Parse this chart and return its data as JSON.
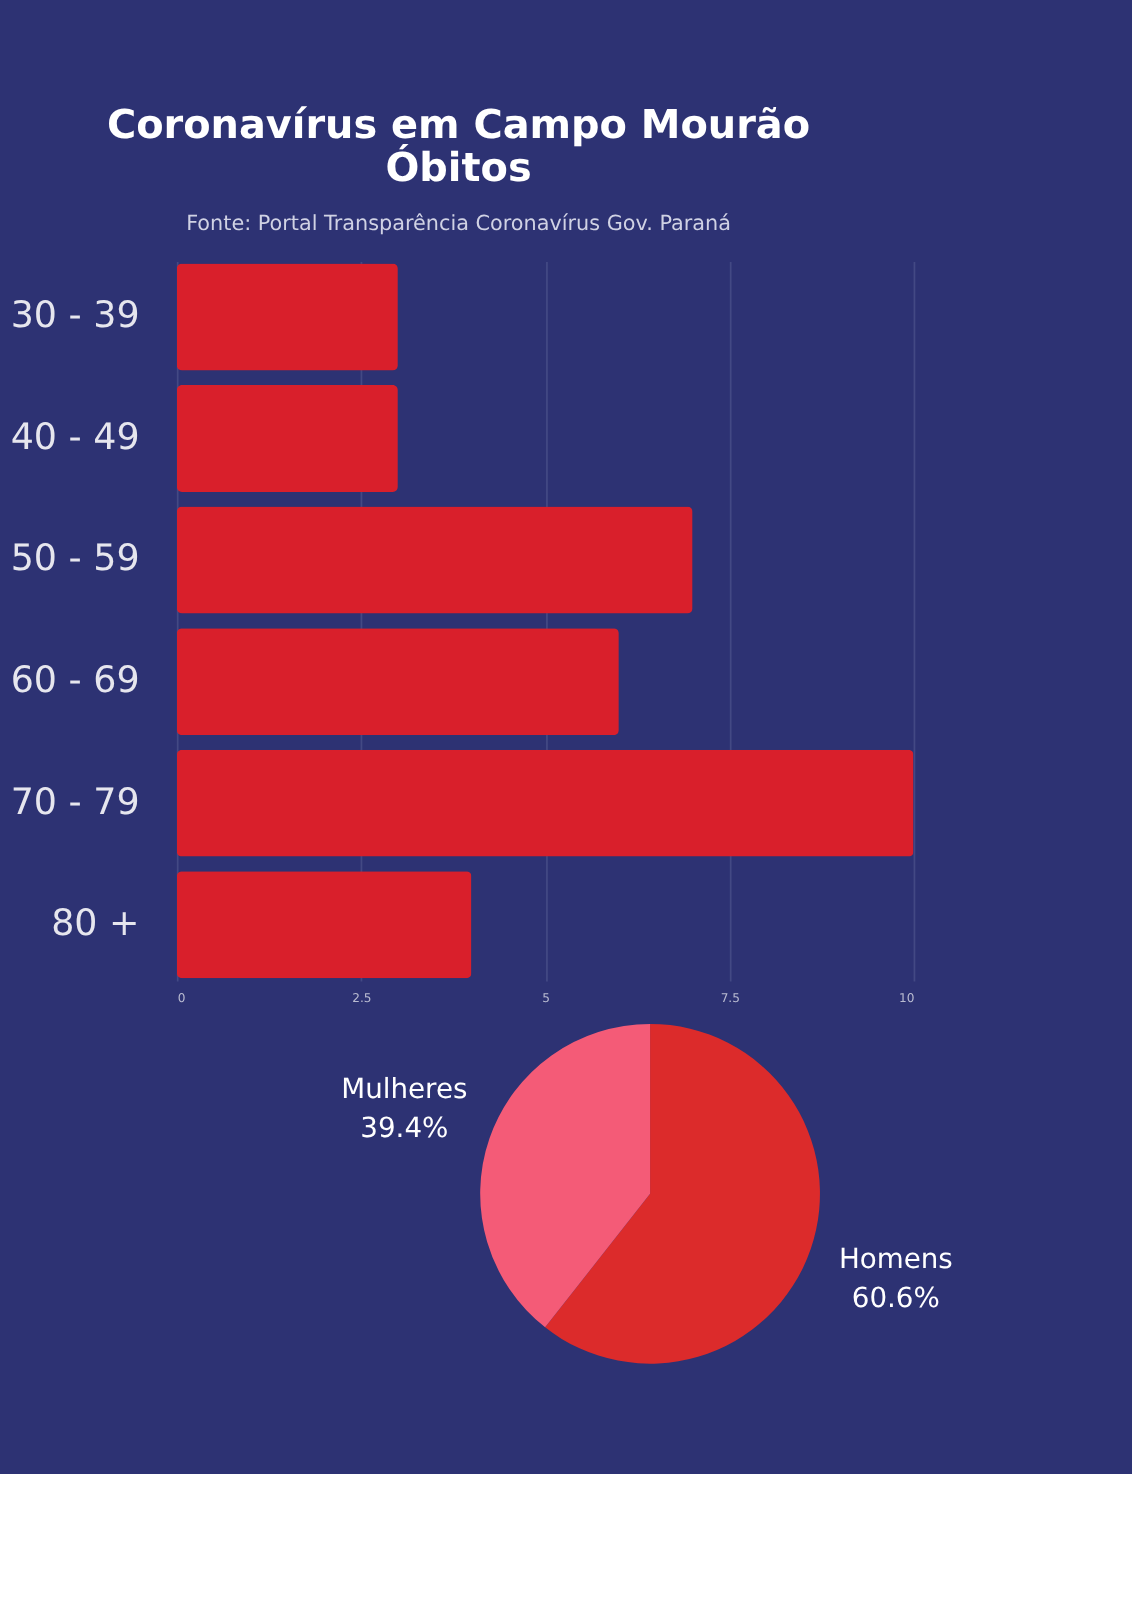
{
  "chart_data": [
    {
      "type": "bar",
      "title": "Coronavírus em Campo Mourão",
      "subtitle": "Óbitos",
      "annotations": [
        "Fonte: Portal Transparência Coronavírus Gov.  Paraná"
      ],
      "orientation": "horizontal",
      "categories": [
        "30 - 39",
        "40 - 49",
        "50 - 59",
        "60 - 69",
        "70 - 79",
        "80 +"
      ],
      "values": [
        3,
        3,
        7,
        6,
        10,
        4
      ],
      "color": "#d91f2b",
      "xlim": [
        0,
        10
      ],
      "xticks": [
        0,
        2.5,
        5,
        7.5,
        10
      ],
      "grid": "x"
    },
    {
      "type": "pie",
      "categories": [
        "Homens",
        "Mulheres"
      ],
      "values": [
        60.6,
        39.4
      ],
      "colors": [
        "#dc2b2b",
        "#f45b77"
      ],
      "value_labels": [
        "60.6%",
        "39.4%"
      ]
    }
  ]
}
